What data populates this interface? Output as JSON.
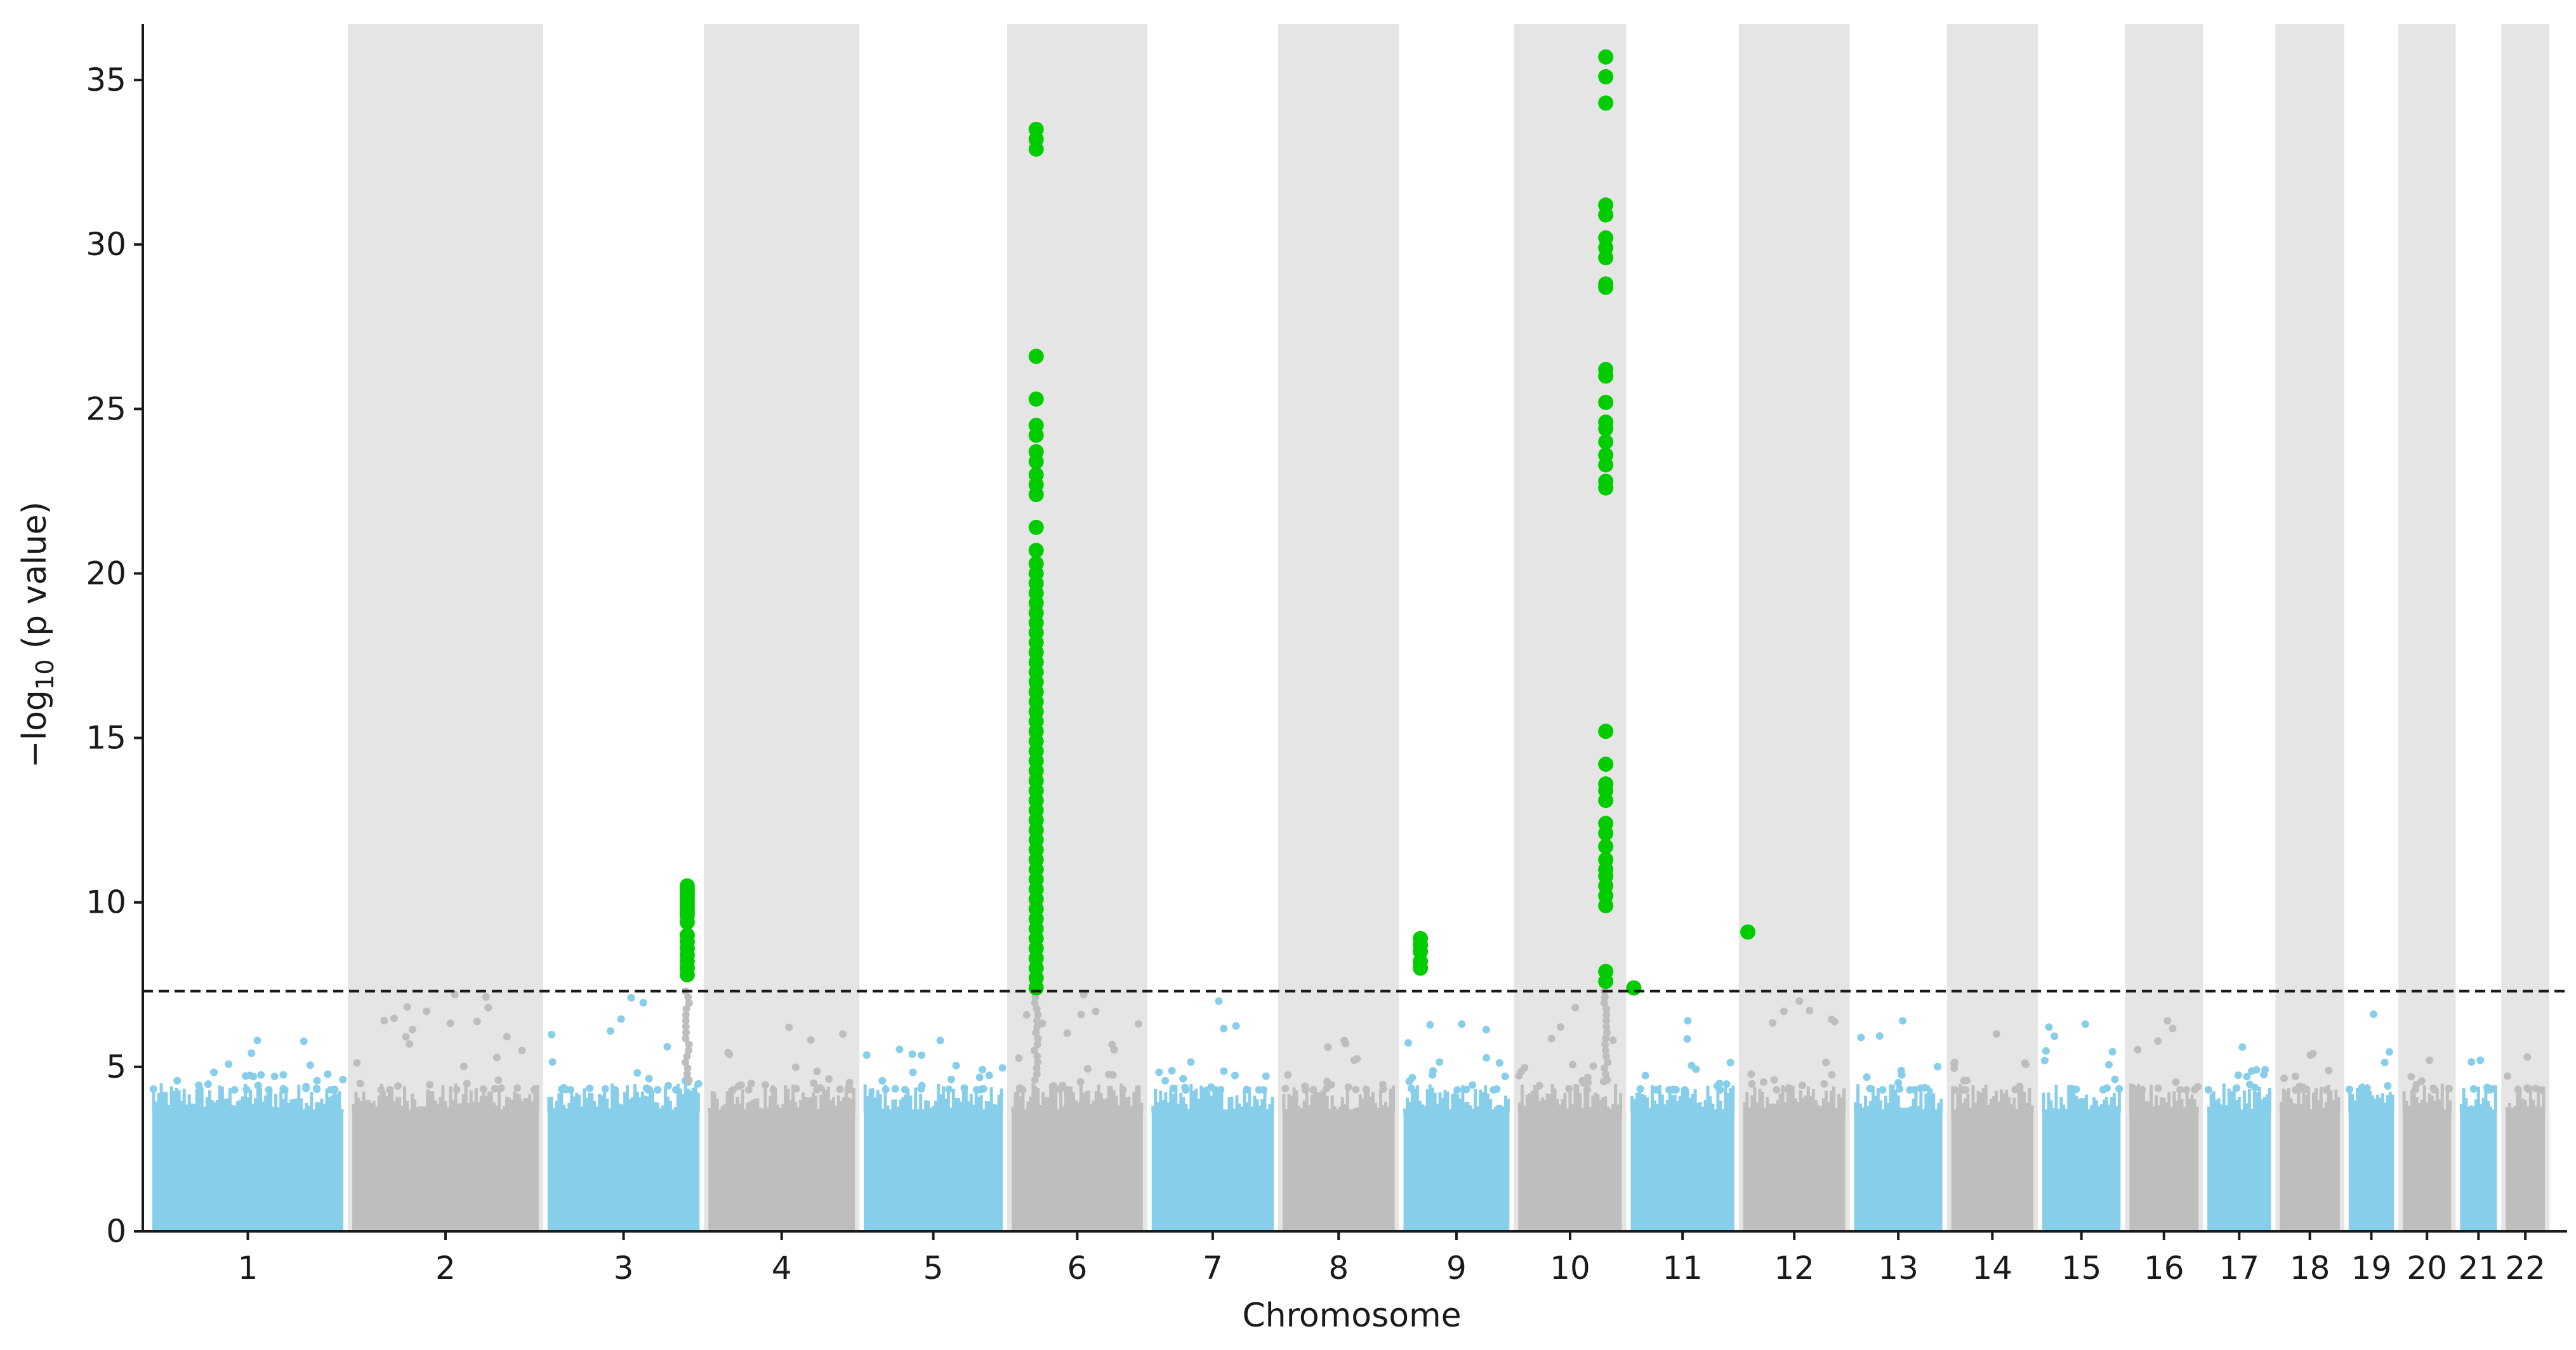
{
  "chart_data": {
    "type": "scatter",
    "subtype": "manhattan",
    "xlabel": "Chromosome",
    "ylabel_prefix": "−log",
    "ylabel_sub": "10",
    "ylabel_suffix": " (p value)",
    "ylim": [
      0,
      36.7
    ],
    "yticks": [
      0,
      5,
      10,
      15,
      20,
      25,
      30,
      35
    ],
    "significance_threshold": 7.3,
    "colors": {
      "odd_chromosome": "#87ceeb",
      "even_chromosome": "#bebebe",
      "significant": "#00cc00",
      "band": "#e5e5e5",
      "threshold_line": "#1a1a1a"
    },
    "chromosomes": [
      {
        "label": "1",
        "length": 249,
        "peak": 5.8,
        "shaded": false
      },
      {
        "label": "2",
        "length": 243,
        "peak": 7.2,
        "shaded": true
      },
      {
        "label": "3",
        "length": 198,
        "peak": 7.1,
        "shaded": false
      },
      {
        "label": "4",
        "length": 191,
        "peak": 6.2,
        "shaded": true
      },
      {
        "label": "5",
        "length": 181,
        "peak": 5.8,
        "shaded": false
      },
      {
        "label": "6",
        "length": 171,
        "peak": 7.2,
        "shaded": true
      },
      {
        "label": "7",
        "length": 159,
        "peak": 7.0,
        "shaded": false
      },
      {
        "label": "8",
        "length": 146,
        "peak": 5.8,
        "shaded": true
      },
      {
        "label": "9",
        "length": 138,
        "peak": 6.3,
        "shaded": false
      },
      {
        "label": "10",
        "length": 135,
        "peak": 6.8,
        "shaded": true
      },
      {
        "label": "11",
        "length": 135,
        "peak": 6.4,
        "shaded": false
      },
      {
        "label": "12",
        "length": 133,
        "peak": 7.0,
        "shaded": true
      },
      {
        "label": "13",
        "length": 115,
        "peak": 6.4,
        "shaded": false
      },
      {
        "label": "14",
        "length": 107,
        "peak": 6.0,
        "shaded": true
      },
      {
        "label": "15",
        "length": 102,
        "peak": 6.3,
        "shaded": false
      },
      {
        "label": "16",
        "length": 90,
        "peak": 6.4,
        "shaded": true
      },
      {
        "label": "17",
        "length": 83,
        "peak": 5.6,
        "shaded": false
      },
      {
        "label": "18",
        "length": 78,
        "peak": 5.4,
        "shaded": true
      },
      {
        "label": "19",
        "length": 59,
        "peak": 6.6,
        "shaded": false
      },
      {
        "label": "20",
        "length": 63,
        "peak": 5.2,
        "shaded": true
      },
      {
        "label": "21",
        "length": 48,
        "peak": 5.2,
        "shaded": false
      },
      {
        "label": "22",
        "length": 51,
        "peak": 5.3,
        "shaded": true
      }
    ],
    "significant_hits": [
      {
        "chromosome": "3",
        "position": 182,
        "values": [
          10.5,
          10.4,
          10.3,
          10.2,
          10.1,
          10.0,
          9.9,
          9.8,
          9.7,
          9.6,
          9.4,
          9.0,
          8.8,
          8.6,
          8.4,
          8.2,
          8.0,
          7.8
        ]
      },
      {
        "chromosome": "6",
        "position": 32,
        "values": [
          33.5,
          33.2,
          32.9,
          26.6,
          25.3,
          24.5,
          24.2,
          23.7,
          23.4,
          23.0,
          22.7,
          22.4,
          21.4,
          20.7,
          20.3,
          20.0,
          19.7,
          19.4,
          19.1,
          18.8,
          18.5,
          18.2,
          17.9,
          17.6,
          17.3,
          17.0,
          16.7,
          16.4,
          16.1,
          15.8,
          15.5,
          15.2,
          14.9,
          14.6,
          14.3,
          14.0,
          13.7,
          13.4,
          13.1,
          12.8,
          12.5,
          12.2,
          11.9,
          11.6,
          11.3,
          11.0,
          10.7,
          10.4,
          10.1,
          9.8,
          9.5,
          9.2,
          8.9,
          8.6,
          8.3,
          8.0,
          7.7,
          7.4
        ]
      },
      {
        "chromosome": "9",
        "position": 22,
        "values": [
          8.9,
          8.7,
          8.5,
          8.2,
          8.0
        ]
      },
      {
        "chromosome": "10",
        "position": 114,
        "values": [
          35.7,
          35.1,
          34.3,
          31.2,
          30.9,
          30.2,
          29.9,
          29.6,
          28.8,
          28.7,
          26.2,
          26.0,
          25.2,
          24.6,
          24.4,
          24.0,
          23.6,
          23.3,
          22.8,
          22.6,
          15.2,
          14.2,
          13.6,
          13.4,
          13.1,
          12.4,
          12.1,
          11.7,
          11.3,
          11.0,
          10.8,
          10.5,
          10.2,
          9.9,
          7.9,
          7.6
        ]
      },
      {
        "chromosome": "11",
        "position": 4,
        "values": [
          7.4
        ]
      },
      {
        "chromosome": "12",
        "position": 6,
        "values": [
          9.1
        ]
      }
    ]
  }
}
